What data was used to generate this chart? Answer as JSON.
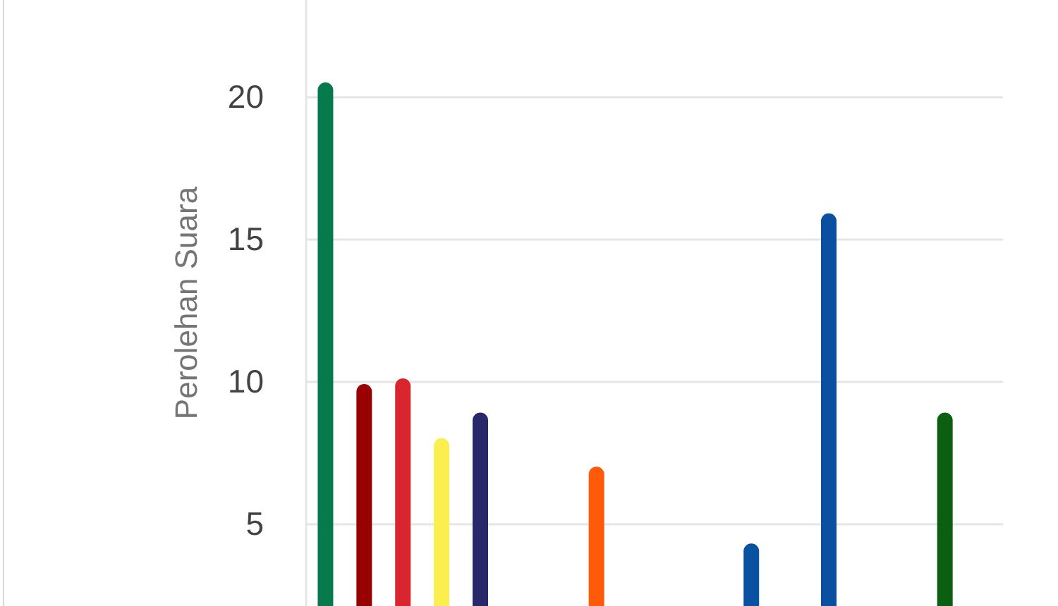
{
  "chart_data": {
    "type": "bar",
    "ylabel": "Perolehan Suara",
    "categories": [
      null,
      null,
      null,
      null,
      null,
      null,
      null,
      null,
      null,
      null,
      null,
      null,
      null,
      null,
      null,
      null,
      null,
      null
    ],
    "values": [
      20.5,
      9.9,
      10.1,
      8.0,
      8.9,
      null,
      null,
      7.0,
      null,
      null,
      null,
      4.3,
      null,
      15.9,
      null,
      null,
      8.9,
      null
    ],
    "colors": [
      "#067a4c",
      "#990000",
      "#d9262e",
      "#fbee4f",
      "#28286a",
      null,
      null,
      "#ff5a0a",
      null,
      null,
      null,
      "#0a51a1",
      null,
      "#0a4fa0",
      null,
      null,
      "#0a6010",
      null
    ],
    "ylim": [
      2.1,
      23.4
    ],
    "yticks": [
      5,
      10,
      15,
      20
    ],
    "grid": "y",
    "tick_labels": "y"
  }
}
